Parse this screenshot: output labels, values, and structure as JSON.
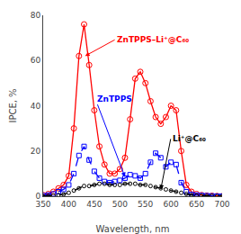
{
  "chart_data": {
    "type": "line",
    "xlabel": "Wavelength, nm",
    "ylabel": "IPCE, %",
    "xlim": [
      350,
      700
    ],
    "ylim": [
      0,
      80
    ],
    "xticks": [
      350,
      400,
      450,
      500,
      550,
      600,
      650,
      700
    ],
    "yticks": [
      0,
      20,
      40,
      60,
      80
    ],
    "grid": false,
    "x": [
      350,
      360,
      370,
      380,
      390,
      400,
      410,
      420,
      430,
      440,
      450,
      460,
      470,
      480,
      490,
      500,
      510,
      520,
      530,
      540,
      550,
      560,
      570,
      580,
      590,
      600,
      610,
      620,
      630,
      640,
      650,
      660,
      670,
      680,
      690,
      700
    ],
    "series": [
      {
        "color": "#ff0000",
        "marker": "circle",
        "line_style": "solid",
        "values": [
          0.5,
          1.0,
          2.0,
          3.5,
          5.0,
          9.0,
          30.0,
          62.0,
          76.0,
          58.0,
          38.0,
          22.0,
          14.0,
          10.0,
          10.0,
          12.0,
          17.0,
          34.0,
          52.0,
          55.0,
          50.0,
          42.0,
          35.0,
          32.0,
          35.0,
          40.0,
          38.0,
          20.0,
          5.0,
          2.0,
          1.0,
          0.5,
          0.3,
          0.2,
          0.1,
          0.0
        ]
      },
      {
        "color": "#0000ff",
        "marker": "square",
        "line_style": "dashed",
        "values": [
          0.2,
          0.5,
          1.0,
          2.0,
          3.0,
          5.0,
          10.0,
          18.0,
          22.0,
          16.0,
          11.0,
          8.0,
          6.5,
          6.0,
          6.5,
          7.0,
          8.0,
          9.5,
          9.0,
          8.0,
          10.0,
          15.0,
          19.0,
          17.0,
          13.0,
          15.0,
          14.0,
          6.0,
          2.0,
          0.8,
          0.5,
          0.3,
          0.2,
          0.1,
          0.0,
          0.0
        ]
      },
      {
        "color": "#000000",
        "marker": "circle",
        "line_style": "dashed",
        "values": [
          0.0,
          0.1,
          0.3,
          0.5,
          0.8,
          1.5,
          2.5,
          3.5,
          4.5,
          4.5,
          5.0,
          5.5,
          5.5,
          5.0,
          5.0,
          5.0,
          5.5,
          5.5,
          5.5,
          5.0,
          5.0,
          4.5,
          4.0,
          3.5,
          3.0,
          2.5,
          2.0,
          1.5,
          1.0,
          0.5,
          0.3,
          0.2,
          0.1,
          0.1,
          0.0,
          0.0
        ]
      }
    ],
    "annotations": [
      {
        "text": "ZnTPPS–Li⁺@C₆₀",
        "x": 432,
        "y": 62,
        "color": "#ff0000"
      },
      {
        "text": "ZnTPPS",
        "x": 510,
        "y": 8.5,
        "color": "#0000ff"
      },
      {
        "text": "Li⁺@C₆₀",
        "x": 580,
        "y": 3.0,
        "color": "#000000"
      }
    ]
  }
}
